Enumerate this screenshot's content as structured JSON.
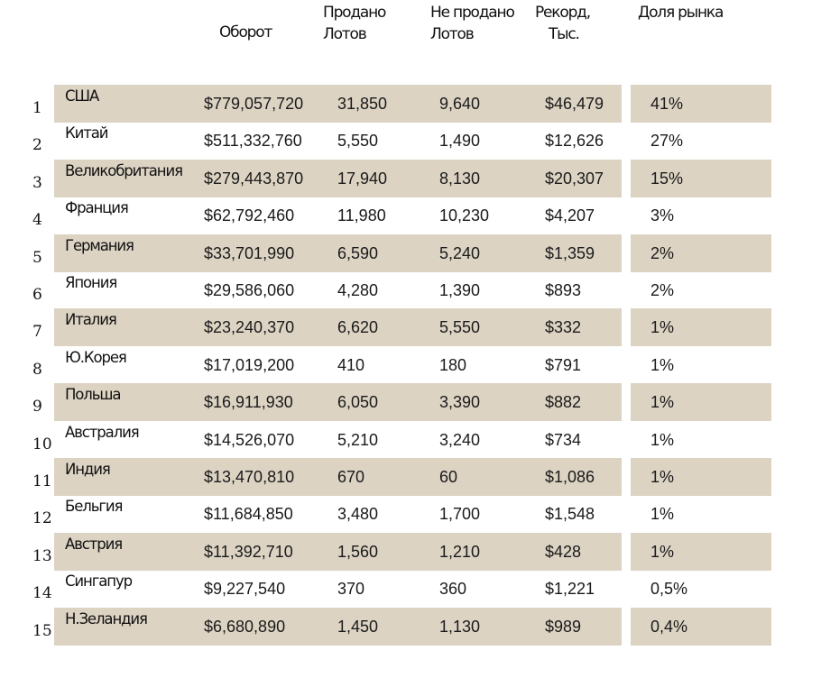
{
  "header": {
    "turnover": "Оборот",
    "sold": [
      "Продано",
      "Лотов"
    ],
    "unsold": [
      "Не продано",
      "Лотов"
    ],
    "record": [
      "Рекорд,",
      "Тыс."
    ],
    "share": "Доля рынка"
  },
  "colors": {
    "band": "#dcd3c3",
    "text": "#1a1a1a"
  },
  "rows": [
    {
      "num": "1",
      "country": "США",
      "turnover": "$779,057,720",
      "sold": "31,850",
      "unsold": "9,640",
      "record": "$46,479",
      "share": "41%"
    },
    {
      "num": "2",
      "country": "Китай",
      "turnover": "$511,332,760",
      "sold": "5,550",
      "unsold": "1,490",
      "record": "$12,626",
      "share": "27%"
    },
    {
      "num": "3",
      "country": "Великобритания",
      "turnover": "$279,443,870",
      "sold": "17,940",
      "unsold": "8,130",
      "record": "$20,307",
      "share": "15%"
    },
    {
      "num": "4",
      "country": "Франция",
      "turnover": "$62,792,460",
      "sold": "11,980",
      "unsold": "10,230",
      "record": "$4,207",
      "share": "3%"
    },
    {
      "num": "5",
      "country": "Германия",
      "turnover": "$33,701,990",
      "sold": "6,590",
      "unsold": "5,240",
      "record": "$1,359",
      "share": "2%"
    },
    {
      "num": "6",
      "country": "Япония",
      "turnover": "$29,586,060",
      "sold": "4,280",
      "unsold": "1,390",
      "record": "$893",
      "share": "2%"
    },
    {
      "num": "7",
      "country": "Италия",
      "turnover": "$23,240,370",
      "sold": "6,620",
      "unsold": "5,550",
      "record": "$332",
      "share": "1%"
    },
    {
      "num": "8",
      "country": "Ю.Корея",
      "turnover": "$17,019,200",
      "sold": "410",
      "unsold": "180",
      "record": "$791",
      "share": "1%"
    },
    {
      "num": "9",
      "country": "Польша",
      "turnover": "$16,911,930",
      "sold": "6,050",
      "unsold": "3,390",
      "record": "$882",
      "share": "1%"
    },
    {
      "num": "10",
      "country": "Австралия",
      "turnover": "$14,526,070",
      "sold": "5,210",
      "unsold": "3,240",
      "record": "$734",
      "share": "1%"
    },
    {
      "num": "11",
      "country": "Индия",
      "turnover": "$13,470,810",
      "sold": "670",
      "unsold": "60",
      "record": "$1,086",
      "share": "1%"
    },
    {
      "num": "12",
      "country": "Бельгия",
      "turnover": "$11,684,850",
      "sold": "3,480",
      "unsold": "1,700",
      "record": "$1,548",
      "share": "1%"
    },
    {
      "num": "13",
      "country": "Австрия",
      "turnover": "$11,392,710",
      "sold": "1,560",
      "unsold": "1,210",
      "record": "$428",
      "share": "1%"
    },
    {
      "num": "14",
      "country": "Сингапур",
      "turnover": "$9,227,540",
      "sold": "370",
      "unsold": "360",
      "record": "$1,221",
      "share": "0,5%"
    },
    {
      "num": "15",
      "country": "Н.Зеландия",
      "turnover": "$6,680,890",
      "sold": "1,450",
      "unsold": "1,130",
      "record": "$989",
      "share": "0,4%"
    }
  ]
}
